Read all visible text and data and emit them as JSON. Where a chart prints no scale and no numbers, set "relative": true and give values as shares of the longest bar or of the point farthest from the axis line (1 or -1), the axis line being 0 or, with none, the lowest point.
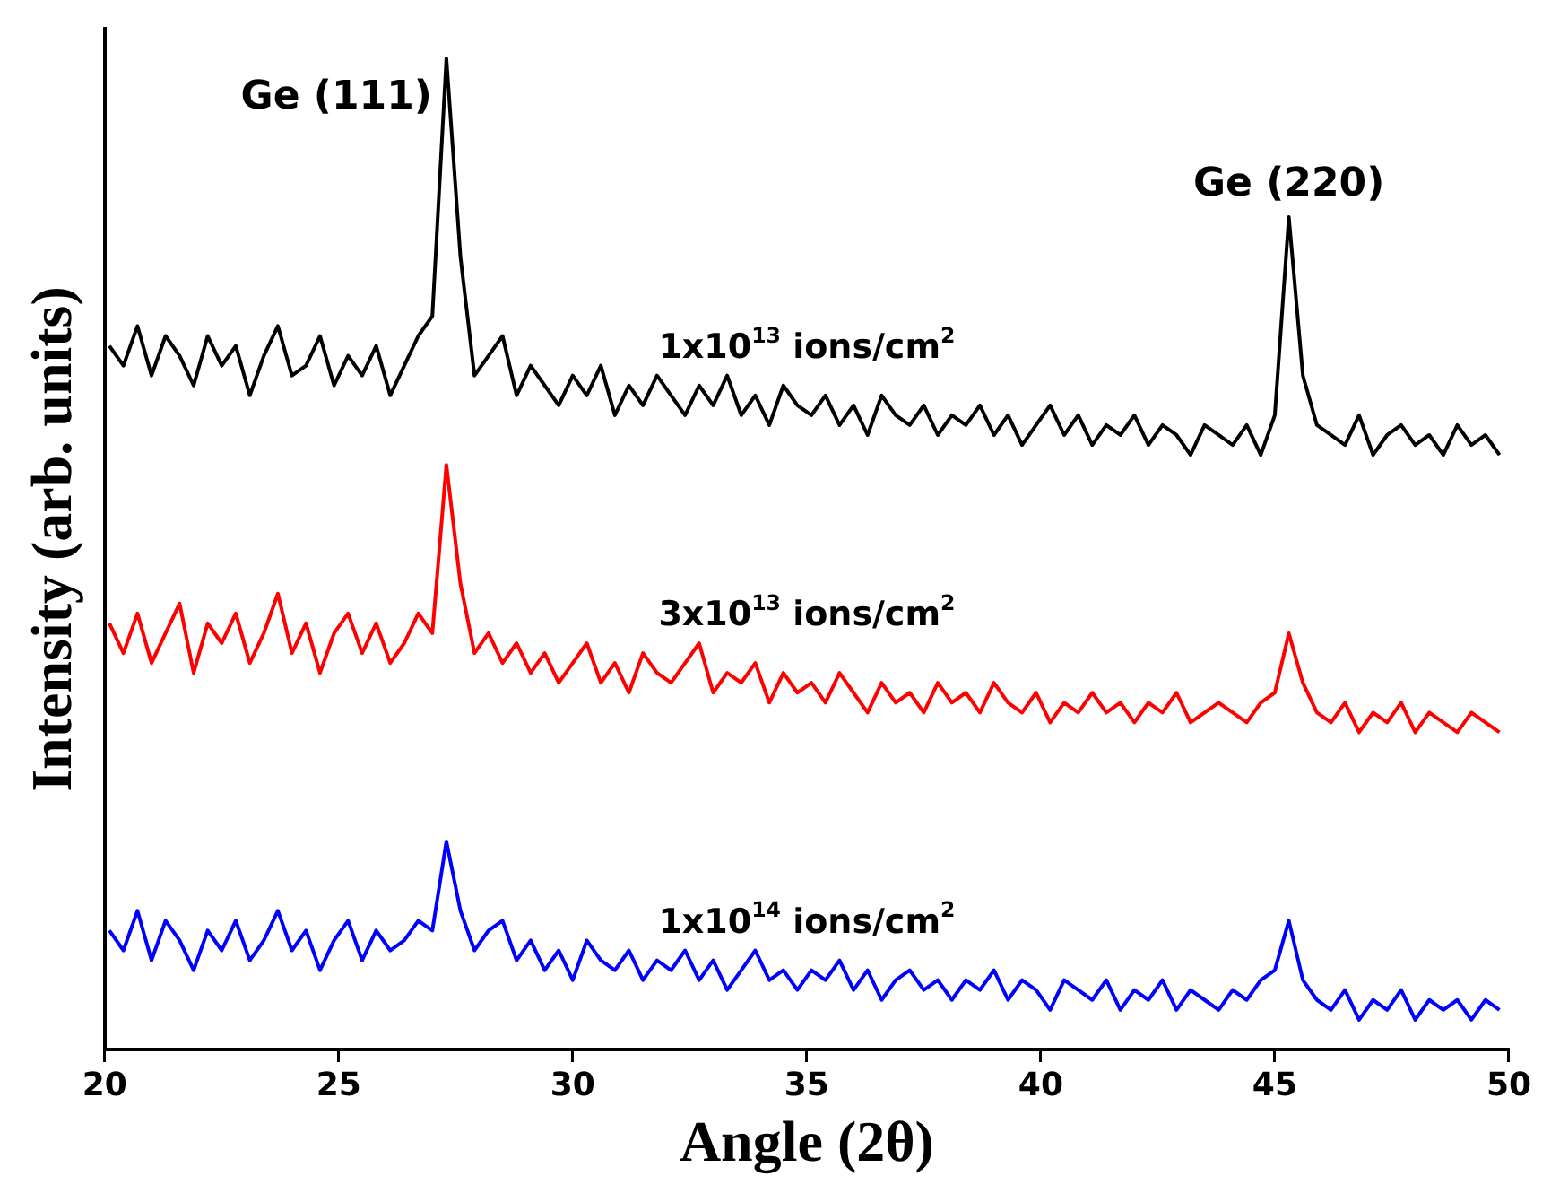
{
  "chart_data": {
    "type": "line",
    "xlabel": "Angle (2θ)",
    "ylabel": "Intensity (arb. units)",
    "relative": true,
    "xlim": [
      20,
      50
    ],
    "xticks": [
      20,
      25,
      30,
      35,
      40,
      45,
      50
    ],
    "x": [
      20.1,
      20.4,
      20.7,
      21,
      21.3,
      21.6,
      21.9,
      22.2,
      22.5,
      22.8,
      23.1,
      23.4,
      23.7,
      24,
      24.3,
      24.6,
      24.9,
      25.2,
      25.5,
      25.8,
      26.1,
      26.4,
      26.7,
      27,
      27.3,
      27.6,
      27.9,
      28.2,
      28.5,
      28.8,
      29.1,
      29.4,
      29.7,
      30,
      30.3,
      30.6,
      30.9,
      31.2,
      31.5,
      31.8,
      32.1,
      32.4,
      32.7,
      33,
      33.3,
      33.6,
      33.9,
      34.2,
      34.5,
      34.8,
      35.1,
      35.4,
      35.7,
      36,
      36.3,
      36.6,
      36.9,
      37.2,
      37.5,
      37.8,
      38.1,
      38.4,
      38.7,
      39,
      39.3,
      39.6,
      39.9,
      40.2,
      40.5,
      40.8,
      41.1,
      41.4,
      41.7,
      42,
      42.3,
      42.6,
      42.9,
      43.2,
      43.5,
      43.8,
      44.1,
      44.4,
      44.7,
      45,
      45.3,
      45.6,
      45.9,
      46.2,
      46.5,
      46.8,
      47.1,
      47.4,
      47.7,
      48,
      48.3,
      48.6,
      48.9,
      49.2,
      49.5,
      49.8
    ],
    "series": [
      {
        "name": "1x10$^{13}$ ions/cm$^{2}$",
        "color": "#000000",
        "values": [
          0.71,
          0.69,
          0.73,
          0.68,
          0.72,
          0.7,
          0.67,
          0.72,
          0.69,
          0.71,
          0.66,
          0.7,
          0.73,
          0.68,
          0.69,
          0.72,
          0.67,
          0.7,
          0.68,
          0.71,
          0.66,
          0.69,
          0.72,
          0.74,
          1.0,
          0.8,
          0.68,
          0.7,
          0.72,
          0.66,
          0.69,
          0.67,
          0.65,
          0.68,
          0.66,
          0.69,
          0.64,
          0.67,
          0.65,
          0.68,
          0.66,
          0.64,
          0.67,
          0.65,
          0.68,
          0.64,
          0.66,
          0.63,
          0.67,
          0.65,
          0.64,
          0.66,
          0.63,
          0.65,
          0.62,
          0.66,
          0.64,
          0.63,
          0.65,
          0.62,
          0.64,
          0.63,
          0.65,
          0.62,
          0.64,
          0.61,
          0.63,
          0.65,
          0.62,
          0.64,
          0.61,
          0.63,
          0.62,
          0.64,
          0.61,
          0.63,
          0.62,
          0.6,
          0.63,
          0.62,
          0.61,
          0.63,
          0.6,
          0.64,
          0.84,
          0.68,
          0.63,
          0.62,
          0.61,
          0.64,
          0.6,
          0.62,
          0.63,
          0.61,
          0.62,
          0.6,
          0.63,
          0.61,
          0.62,
          0.6
        ]
      },
      {
        "name": "3x10$^{13}$ ions/cm$^{2}$",
        "color": "#ff0000",
        "values": [
          0.43,
          0.4,
          0.44,
          0.39,
          0.42,
          0.45,
          0.38,
          0.43,
          0.41,
          0.44,
          0.39,
          0.42,
          0.46,
          0.4,
          0.43,
          0.38,
          0.42,
          0.44,
          0.4,
          0.43,
          0.39,
          0.41,
          0.44,
          0.42,
          0.59,
          0.47,
          0.4,
          0.42,
          0.39,
          0.41,
          0.38,
          0.4,
          0.37,
          0.39,
          0.41,
          0.37,
          0.39,
          0.36,
          0.4,
          0.38,
          0.37,
          0.39,
          0.41,
          0.36,
          0.38,
          0.37,
          0.39,
          0.35,
          0.38,
          0.36,
          0.37,
          0.35,
          0.38,
          0.36,
          0.34,
          0.37,
          0.35,
          0.36,
          0.34,
          0.37,
          0.35,
          0.36,
          0.34,
          0.37,
          0.35,
          0.34,
          0.36,
          0.33,
          0.35,
          0.34,
          0.36,
          0.34,
          0.35,
          0.33,
          0.35,
          0.34,
          0.36,
          0.33,
          0.34,
          0.35,
          0.34,
          0.33,
          0.35,
          0.36,
          0.42,
          0.37,
          0.34,
          0.33,
          0.35,
          0.32,
          0.34,
          0.33,
          0.35,
          0.32,
          0.34,
          0.33,
          0.32,
          0.34,
          0.33,
          0.32
        ]
      },
      {
        "name": "1x10$^{14}$ ions/cm$^{2}$",
        "color": "#0000ff",
        "values": [
          0.12,
          0.1,
          0.14,
          0.09,
          0.13,
          0.11,
          0.08,
          0.12,
          0.1,
          0.13,
          0.09,
          0.11,
          0.14,
          0.1,
          0.12,
          0.08,
          0.11,
          0.13,
          0.09,
          0.12,
          0.1,
          0.11,
          0.13,
          0.12,
          0.21,
          0.14,
          0.1,
          0.12,
          0.13,
          0.09,
          0.11,
          0.08,
          0.1,
          0.07,
          0.11,
          0.09,
          0.08,
          0.1,
          0.07,
          0.09,
          0.08,
          0.1,
          0.07,
          0.09,
          0.06,
          0.08,
          0.1,
          0.07,
          0.08,
          0.06,
          0.08,
          0.07,
          0.09,
          0.06,
          0.08,
          0.05,
          0.07,
          0.08,
          0.06,
          0.07,
          0.05,
          0.07,
          0.06,
          0.08,
          0.05,
          0.07,
          0.06,
          0.04,
          0.07,
          0.06,
          0.05,
          0.07,
          0.04,
          0.06,
          0.05,
          0.07,
          0.04,
          0.06,
          0.05,
          0.04,
          0.06,
          0.05,
          0.07,
          0.08,
          0.13,
          0.07,
          0.05,
          0.04,
          0.06,
          0.03,
          0.05,
          0.04,
          0.06,
          0.03,
          0.05,
          0.04,
          0.05,
          0.03,
          0.05,
          0.04
        ]
      }
    ],
    "annotations": [
      {
        "text": "Ge (111)",
        "x": 27.3,
        "y": 1.0
      },
      {
        "text": "Ge (220)",
        "x": 45.3,
        "y": 0.84
      }
    ]
  }
}
